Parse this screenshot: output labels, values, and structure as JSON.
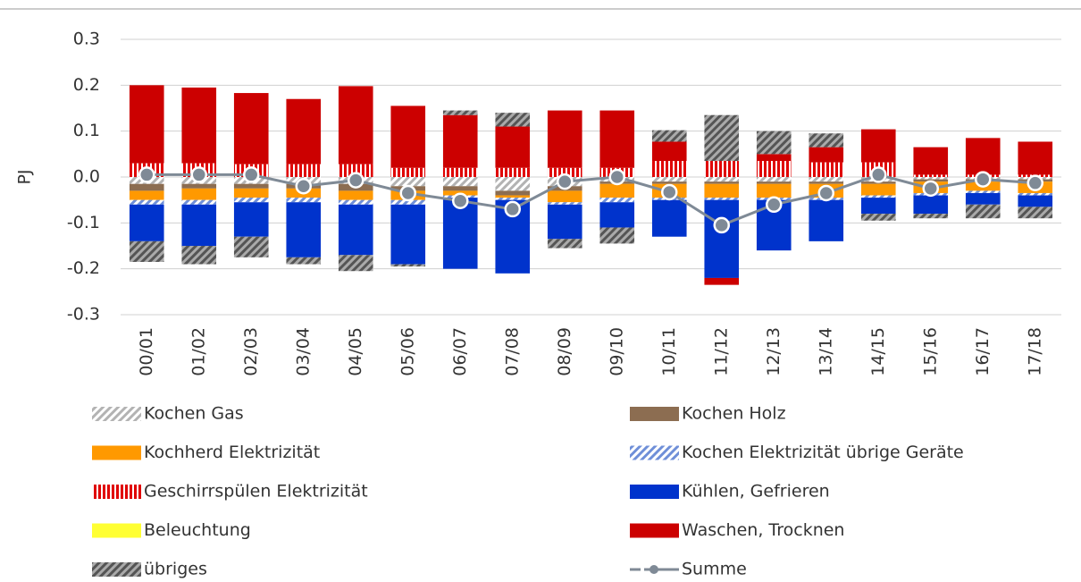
{
  "chart_data": {
    "type": "bar",
    "stacked": true,
    "ylabel": "PJ",
    "categories": [
      "00/01",
      "01/02",
      "02/03",
      "03/04",
      "04/05",
      "05/06",
      "06/07",
      "07/08",
      "08/09",
      "09/10",
      "10/11",
      "11/12",
      "12/13",
      "13/14",
      "14/15",
      "15/16",
      "16/17",
      "17/18"
    ],
    "ylim": [
      -0.3,
      0.3
    ],
    "yticks": [
      -0.3,
      -0.2,
      -0.1,
      {
        "value": 0,
        "label": "0.0"
      },
      0.1,
      0.2,
      0.3
    ],
    "grid": true,
    "series": [
      {
        "name": "Kochen Gas",
        "color": "#b3b3b3",
        "pattern": "diagonal",
        "values": [
          -0.015,
          -0.015,
          -0.015,
          -0.015,
          -0.015,
          -0.02,
          -0.02,
          -0.03,
          -0.02,
          -0.01,
          -0.01,
          -0.01,
          -0.01,
          -0.01,
          -0.01,
          -0.005,
          -0.005,
          -0.005
        ]
      },
      {
        "name": "Kochen Holz",
        "color": "#8c6d51",
        "values": [
          -0.015,
          -0.01,
          -0.01,
          -0.01,
          -0.015,
          -0.01,
          -0.01,
          -0.01,
          -0.01,
          -0.005,
          -0.005,
          -0.005,
          -0.005,
          -0.005,
          -0.005,
          -0.005,
          -0.005,
          -0.005
        ]
      },
      {
        "name": "Kochherd Elektrizität",
        "color": "#ff9900",
        "values": [
          -0.02,
          -0.025,
          -0.02,
          -0.02,
          -0.02,
          -0.02,
          -0.01,
          -0.005,
          -0.025,
          -0.03,
          -0.03,
          -0.03,
          -0.03,
          -0.03,
          -0.025,
          -0.025,
          -0.02,
          -0.025
        ]
      },
      {
        "name": "Kochen Elektrizität übrige Geräte",
        "color": "#6f8fd8",
        "pattern": "diagonal",
        "values": [
          -0.01,
          -0.01,
          -0.01,
          -0.01,
          -0.01,
          -0.01,
          -0.005,
          -0.005,
          -0.005,
          -0.01,
          -0.005,
          -0.005,
          -0.005,
          -0.005,
          -0.005,
          -0.005,
          -0.005,
          -0.005
        ]
      },
      {
        "name": "Geschirrspülen Elektrizität",
        "color": "#e00000",
        "pattern": "vertical",
        "values": [
          0.03,
          0.03,
          0.028,
          0.028,
          0.028,
          0.02,
          0.02,
          0.02,
          0.02,
          0.02,
          0.035,
          0.035,
          0.035,
          0.032,
          0.032,
          0.005,
          0.005,
          0.005
        ]
      },
      {
        "name": "Kühlen, Gefrieren",
        "color": "#0033cc",
        "values": [
          -0.08,
          -0.09,
          -0.075,
          -0.12,
          -0.11,
          -0.13,
          -0.155,
          -0.16,
          -0.075,
          -0.055,
          -0.08,
          -0.17,
          -0.11,
          -0.09,
          -0.035,
          -0.04,
          -0.025,
          -0.025
        ]
      },
      {
        "name": "Beleuchtung",
        "color": "#ffff33",
        "values": [
          0,
          0,
          0,
          0,
          0,
          0,
          0,
          0,
          0,
          0,
          0,
          0,
          0,
          0,
          0,
          0,
          0,
          0
        ]
      },
      {
        "name": "Waschen, Trocknen",
        "color": "#cc0000",
        "values": [
          0.17,
          0.165,
          0.155,
          0.142,
          0.17,
          0.135,
          0.115,
          0.09,
          0.125,
          0.125,
          0.042,
          -0.015,
          0.015,
          0.033,
          0.072,
          0.06,
          0.08,
          0.072
        ]
      },
      {
        "name": "übriges",
        "color": "#555555",
        "pattern": "dark-diagonal",
        "values": [
          -0.045,
          -0.04,
          -0.045,
          -0.015,
          -0.035,
          -0.005,
          0.01,
          0.03,
          -0.02,
          -0.035,
          0.025,
          0.1,
          0.05,
          0.03,
          -0.015,
          -0.01,
          -0.03,
          -0.025
        ]
      },
      {
        "name": "Summe",
        "color": "#7f8a96",
        "kind": "line",
        "values": [
          0.005,
          0.005,
          0.005,
          -0.02,
          -0.007,
          -0.035,
          -0.052,
          -0.07,
          -0.01,
          0,
          -0.033,
          -0.105,
          -0.06,
          -0.035,
          0.005,
          -0.025,
          -0.005,
          -0.013
        ]
      }
    ]
  }
}
